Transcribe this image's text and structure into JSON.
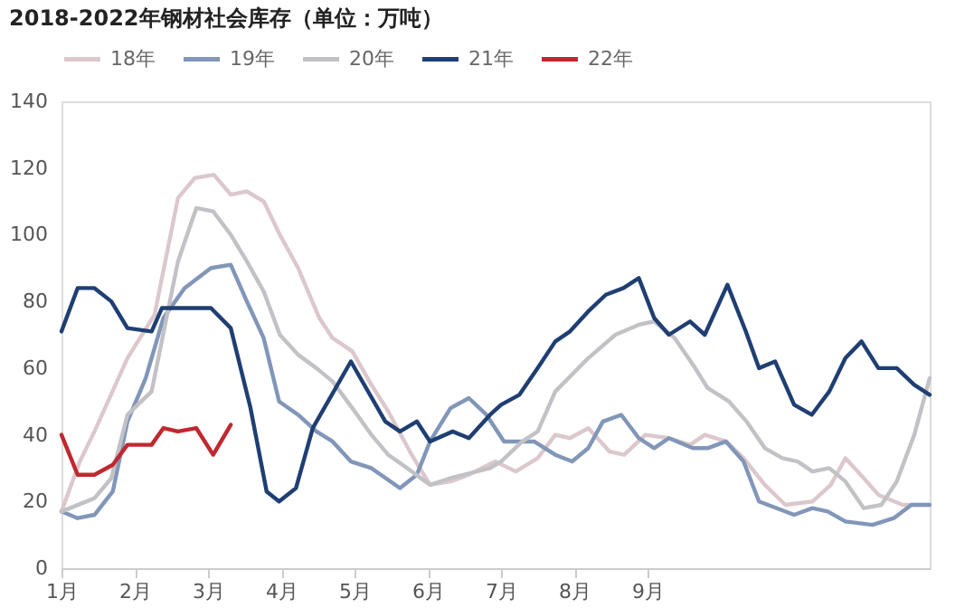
{
  "chart_data": {
    "type": "line",
    "title": "2018-2022年钢材社会库存（单位：万吨）",
    "legend": "top",
    "grid": false,
    "marker": "none",
    "line_style": "solid",
    "ylim": [
      0,
      140
    ],
    "yticks": [
      0,
      20,
      40,
      60,
      80,
      100,
      120,
      140
    ],
    "xlim": [
      1,
      12.85
    ],
    "xticks": [
      {
        "value": 1,
        "label": "1月"
      },
      {
        "value": 2,
        "label": "2月"
      },
      {
        "value": 3,
        "label": "3月"
      },
      {
        "value": 4,
        "label": "4月"
      },
      {
        "value": 5,
        "label": "5月"
      },
      {
        "value": 6,
        "label": "6月"
      },
      {
        "value": 7,
        "label": "7月"
      },
      {
        "value": 8,
        "label": "8月"
      },
      {
        "value": 9,
        "label": "9月"
      }
    ],
    "series": [
      {
        "name": "18年",
        "color": "#dcc8cc",
        "x": [
          1,
          1.25,
          1.45,
          1.9,
          2.27,
          2.59,
          2.82,
          3.08,
          3.31,
          3.53,
          3.76,
          3.98,
          4.23,
          4.52,
          4.7,
          4.97,
          5.23,
          5.46,
          5.78,
          6.03,
          6.31,
          6.56,
          6.92,
          7.2,
          7.5,
          7.74,
          7.94,
          8.19,
          8.48,
          8.68,
          8.97,
          9.29,
          9.58,
          9.78,
          10.07,
          10.31,
          10.6,
          10.88,
          11.25,
          11.5,
          11.7,
          11.95,
          12.15,
          12.48,
          12.85
        ],
        "values": [
          17,
          32,
          41,
          63,
          76,
          111,
          117,
          118,
          112,
          113,
          110,
          100,
          90,
          75,
          69,
          65,
          55,
          47,
          34,
          25,
          26,
          28,
          32,
          29,
          33,
          40,
          39,
          42,
          35,
          34,
          40,
          39,
          37,
          40,
          38,
          33,
          25,
          19,
          20,
          25,
          33,
          27,
          22,
          19,
          19
        ]
      },
      {
        "name": "19年",
        "color": "#8196b8",
        "x": [
          1,
          1.22,
          1.45,
          1.7,
          1.9,
          2.15,
          2.39,
          2.68,
          3.04,
          3.31,
          3.53,
          3.76,
          3.97,
          4.23,
          4.48,
          4.7,
          4.95,
          5.23,
          5.62,
          5.85,
          6.03,
          6.31,
          6.56,
          6.8,
          7.04,
          7.45,
          7.74,
          7.97,
          8.19,
          8.39,
          8.64,
          8.88,
          9.09,
          9.29,
          9.62,
          9.82,
          10.07,
          10.31,
          10.52,
          11.0,
          11.25,
          11.46,
          11.7,
          12.07,
          12.36,
          12.6,
          12.85
        ],
        "values": [
          17,
          15,
          16,
          23,
          44,
          57,
          75,
          84,
          90,
          91,
          80,
          69,
          50,
          46,
          41,
          38,
          32,
          30,
          24,
          28,
          38,
          48,
          51,
          46,
          38,
          38,
          34,
          32,
          36,
          44,
          46,
          39,
          36,
          39,
          36,
          36,
          38,
          32,
          20,
          16,
          18,
          17,
          14,
          13,
          15,
          19,
          19
        ]
      },
      {
        "name": "20年",
        "color": "#c2c2c6",
        "x": [
          1,
          1.45,
          1.68,
          1.9,
          2.23,
          2.59,
          2.84,
          3.07,
          3.31,
          3.53,
          3.76,
          3.98,
          4.23,
          4.48,
          4.7,
          4.97,
          5.23,
          5.46,
          5.72,
          6.03,
          6.31,
          6.85,
          7.0,
          7.29,
          7.5,
          7.74,
          8.19,
          8.56,
          8.88,
          9.09,
          9.37,
          9.62,
          9.82,
          10.11,
          10.35,
          10.6,
          10.84,
          11.05,
          11.25,
          11.48,
          11.7,
          11.95,
          12.19,
          12.4,
          12.64,
          12.85
        ],
        "values": [
          17,
          21,
          27,
          46,
          53,
          92,
          108,
          107,
          100,
          92,
          83,
          70,
          64,
          60,
          56,
          48,
          40,
          34,
          30,
          25,
          27,
          30,
          32,
          38,
          41,
          53,
          63,
          70,
          73,
          74,
          69,
          61,
          54,
          50,
          44,
          36,
          33,
          32,
          29,
          30,
          26,
          18,
          19,
          26,
          40,
          57
        ]
      },
      {
        "name": "21年",
        "color": "#1f3f73",
        "x": [
          1,
          1.22,
          1.45,
          1.68,
          1.9,
          2.23,
          2.37,
          2.68,
          3.04,
          3.31,
          3.58,
          3.8,
          3.97,
          4.2,
          4.43,
          4.95,
          5.42,
          5.62,
          5.85,
          6.03,
          6.34,
          6.56,
          6.85,
          7.0,
          7.25,
          7.5,
          7.74,
          7.94,
          8.19,
          8.43,
          8.67,
          8.88,
          9.09,
          9.29,
          9.58,
          9.78,
          10.09,
          10.34,
          10.52,
          10.74,
          11.0,
          11.24,
          11.48,
          11.7,
          11.92,
          12.15,
          12.4,
          12.64,
          12.85
        ],
        "values": [
          71,
          84,
          84,
          80,
          72,
          71,
          78,
          78,
          78,
          72,
          48,
          23,
          20,
          24,
          42,
          62,
          44,
          41,
          44,
          38,
          41,
          39,
          46,
          49,
          52,
          60,
          68,
          71,
          77,
          82,
          84,
          87,
          75,
          70,
          74,
          70,
          85,
          71,
          60,
          62,
          49,
          46,
          53,
          63,
          68,
          60,
          60,
          55,
          52
        ]
      },
      {
        "name": "22年",
        "color": "#c0282f",
        "x": [
          1,
          1.22,
          1.45,
          1.7,
          1.9,
          2.23,
          2.39,
          2.59,
          2.84,
          3.07,
          3.31
        ],
        "values": [
          40,
          28,
          28,
          31,
          37,
          37,
          42,
          41,
          42,
          34,
          43
        ]
      }
    ]
  }
}
